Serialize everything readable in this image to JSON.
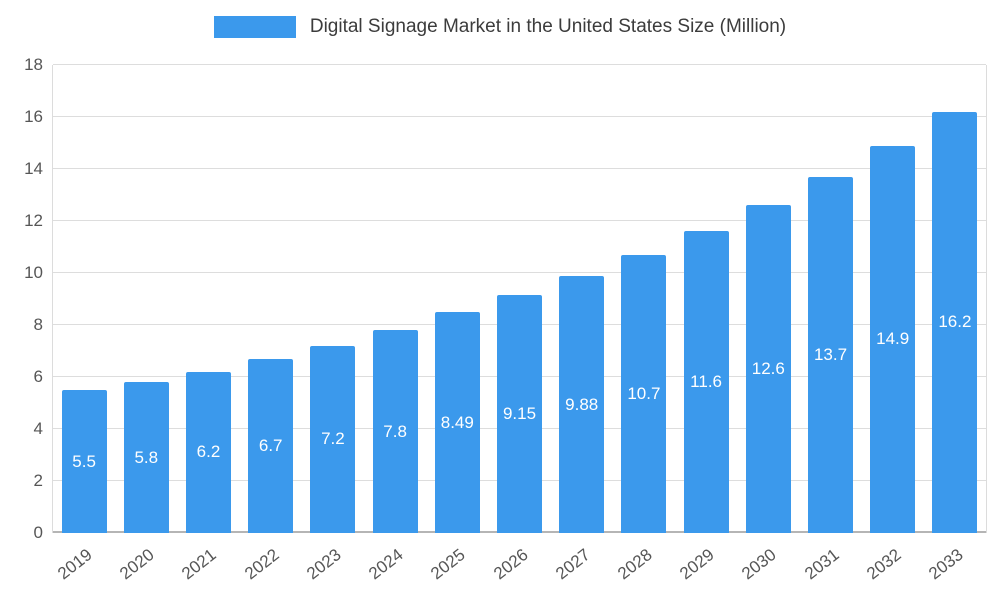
{
  "legend": {
    "label": "Digital Signage Market in the United States Size (Million)"
  },
  "chart_data": {
    "type": "bar",
    "title": "Digital Signage Market in the United States Size (Million)",
    "categories": [
      "2019",
      "2020",
      "2021",
      "2022",
      "2023",
      "2024",
      "2025",
      "2026",
      "2027",
      "2028",
      "2029",
      "2030",
      "2031",
      "2032",
      "2033"
    ],
    "values": [
      5.5,
      5.8,
      6.2,
      6.7,
      7.2,
      7.8,
      8.49,
      9.15,
      9.88,
      10.7,
      11.6,
      12.6,
      13.7,
      14.9,
      16.2
    ],
    "labels": [
      "5.5",
      "5.8",
      "6.2",
      "6.7",
      "7.2",
      "7.8",
      "8.49",
      "9.15",
      "9.88",
      "10.7",
      "11.6",
      "12.6",
      "13.7",
      "14.9",
      "16.2"
    ],
    "xlabel": "",
    "ylabel": "",
    "ylim": [
      0,
      18
    ],
    "yticks": [
      0,
      2,
      4,
      6,
      8,
      10,
      12,
      14,
      16,
      18
    ],
    "grid": true,
    "legend_position": "top",
    "bar_color": "#3b99ec",
    "gridline_color": "#dddddd",
    "axis_text_color": "#565656",
    "value_label_color": "#ffffff"
  }
}
